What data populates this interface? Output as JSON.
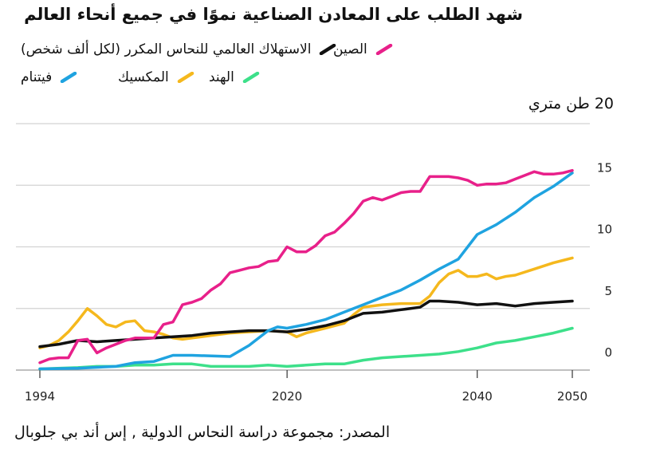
{
  "chart_data": {
    "type": "line",
    "title": "شهد الطلب على المعادن الصناعية نموًا في جميع أنحاء العالم",
    "unit_label": "20 طن متري",
    "source": "المصدر: مجموعة دراسة النحاس الدولية , إس أند بي جلوبال",
    "y_ticks": [
      "0",
      "5",
      "10",
      "15"
    ],
    "y_tick_values": [
      0,
      5,
      10,
      15,
      20
    ],
    "x_ticks": [
      "1994",
      "2020",
      "2040",
      "2050"
    ],
    "x_tick_values": [
      1994,
      2020,
      2040,
      2050
    ],
    "xlim": [
      1994,
      2050
    ],
    "ylim": [
      0,
      20
    ],
    "grid": true,
    "series": [
      {
        "name": "الصين",
        "color": "#e8208a",
        "x": [
          1994,
          1995,
          1996,
          1997,
          1998,
          1999,
          2000,
          2001,
          2002,
          2003,
          2004,
          2005,
          2006,
          2007,
          2008,
          2009,
          2010,
          2011,
          2012,
          2013,
          2014,
          2015,
          2016,
          2017,
          2018,
          2019,
          2020,
          2021,
          2022,
          2023,
          2024,
          2025,
          2026,
          2027,
          2028,
          2029,
          2030,
          2031,
          2032,
          2033,
          2034,
          2035,
          2036,
          2037,
          2038,
          2039,
          2040,
          2041,
          2042,
          2043,
          2044,
          2045,
          2046,
          2047,
          2048,
          2049,
          2050
        ],
        "y": [
          0.6,
          0.9,
          1.0,
          1.0,
          2.4,
          2.5,
          1.4,
          1.8,
          2.1,
          2.4,
          2.6,
          2.6,
          2.6,
          3.7,
          3.9,
          5.3,
          5.5,
          5.8,
          6.5,
          7.0,
          7.9,
          8.1,
          8.3,
          8.4,
          8.8,
          8.9,
          10.0,
          9.6,
          9.6,
          10.1,
          10.9,
          11.2,
          11.9,
          12.7,
          13.7,
          14.0,
          13.8,
          14.1,
          14.4,
          14.5,
          14.5,
          15.7,
          15.7,
          15.7,
          15.6,
          15.4,
          15.0,
          15.1,
          15.1,
          15.2,
          15.5,
          15.8,
          16.1,
          15.9,
          15.9,
          16.0,
          16.2
        ]
      },
      {
        "name": "فيتنام",
        "color": "#1fa3e0",
        "x": [
          1994,
          1998,
          2002,
          2004,
          2006,
          2008,
          2010,
          2014,
          2016,
          2018,
          2019,
          2020,
          2022,
          2024,
          2026,
          2028,
          2030,
          2032,
          2034,
          2036,
          2038,
          2040,
          2042,
          2044,
          2046,
          2048,
          2050
        ],
        "y": [
          0.1,
          0.15,
          0.3,
          0.6,
          0.7,
          1.2,
          1.2,
          1.1,
          2.0,
          3.2,
          3.5,
          3.4,
          3.7,
          4.1,
          4.7,
          5.3,
          5.9,
          6.5,
          7.3,
          8.2,
          9.0,
          11.0,
          11.8,
          12.8,
          14.0,
          14.9,
          16.0
        ]
      },
      {
        "name": "الاستهلاك العالمي للنحاس المكرر (لكل ألف شخص)",
        "color": "#111111",
        "x": [
          1994,
          1996,
          1998,
          2000,
          2002,
          2004,
          2006,
          2008,
          2010,
          2012,
          2014,
          2016,
          2018,
          2020,
          2022,
          2024,
          2026,
          2028,
          2030,
          2032,
          2034,
          2035,
          2036,
          2038,
          2040,
          2042,
          2044,
          2046,
          2048,
          2050
        ],
        "y": [
          1.9,
          2.1,
          2.4,
          2.3,
          2.4,
          2.5,
          2.6,
          2.7,
          2.8,
          3.0,
          3.1,
          3.2,
          3.2,
          3.1,
          3.3,
          3.6,
          4.0,
          4.6,
          4.7,
          4.9,
          5.1,
          5.6,
          5.6,
          5.5,
          5.3,
          5.4,
          5.2,
          5.4,
          5.5,
          5.6
        ]
      },
      {
        "name": "المكسيك",
        "color": "#f5b81d",
        "x": [
          1994,
          1995,
          1996,
          1997,
          1998,
          1999,
          2000,
          2001,
          2002,
          2003,
          2004,
          2005,
          2006,
          2007,
          2008,
          2009,
          2010,
          2012,
          2014,
          2016,
          2018,
          2020,
          2021,
          2022,
          2024,
          2026,
          2027,
          2028,
          2030,
          2032,
          2034,
          2035,
          2036,
          2037,
          2038,
          2039,
          2040,
          2041,
          2042,
          2043,
          2044,
          2046,
          2048,
          2049,
          2050
        ],
        "y": [
          1.8,
          2.0,
          2.4,
          3.1,
          4.0,
          5.0,
          4.4,
          3.7,
          3.5,
          3.9,
          4.0,
          3.2,
          3.1,
          2.9,
          2.6,
          2.5,
          2.6,
          2.8,
          3.0,
          3.1,
          3.2,
          3.1,
          2.7,
          3.0,
          3.4,
          3.8,
          4.5,
          5.1,
          5.3,
          5.4,
          5.4,
          6.0,
          7.1,
          7.8,
          8.1,
          7.6,
          7.6,
          7.8,
          7.4,
          7.6,
          7.7,
          8.2,
          8.7,
          8.9,
          9.1
        ]
      },
      {
        "name": "الهند",
        "color": "#3de08a",
        "x": [
          1994,
          1998,
          2000,
          2002,
          2004,
          2006,
          2008,
          2010,
          2012,
          2014,
          2016,
          2018,
          2020,
          2022,
          2024,
          2026,
          2028,
          2030,
          2032,
          2034,
          2036,
          2038,
          2040,
          2042,
          2044,
          2046,
          2048,
          2050
        ],
        "y": [
          0.1,
          0.2,
          0.3,
          0.3,
          0.4,
          0.4,
          0.5,
          0.5,
          0.3,
          0.3,
          0.3,
          0.4,
          0.3,
          0.4,
          0.5,
          0.5,
          0.8,
          1.0,
          1.1,
          1.2,
          1.3,
          1.5,
          1.8,
          2.2,
          2.4,
          2.7,
          3.0,
          3.4
        ]
      }
    ]
  }
}
